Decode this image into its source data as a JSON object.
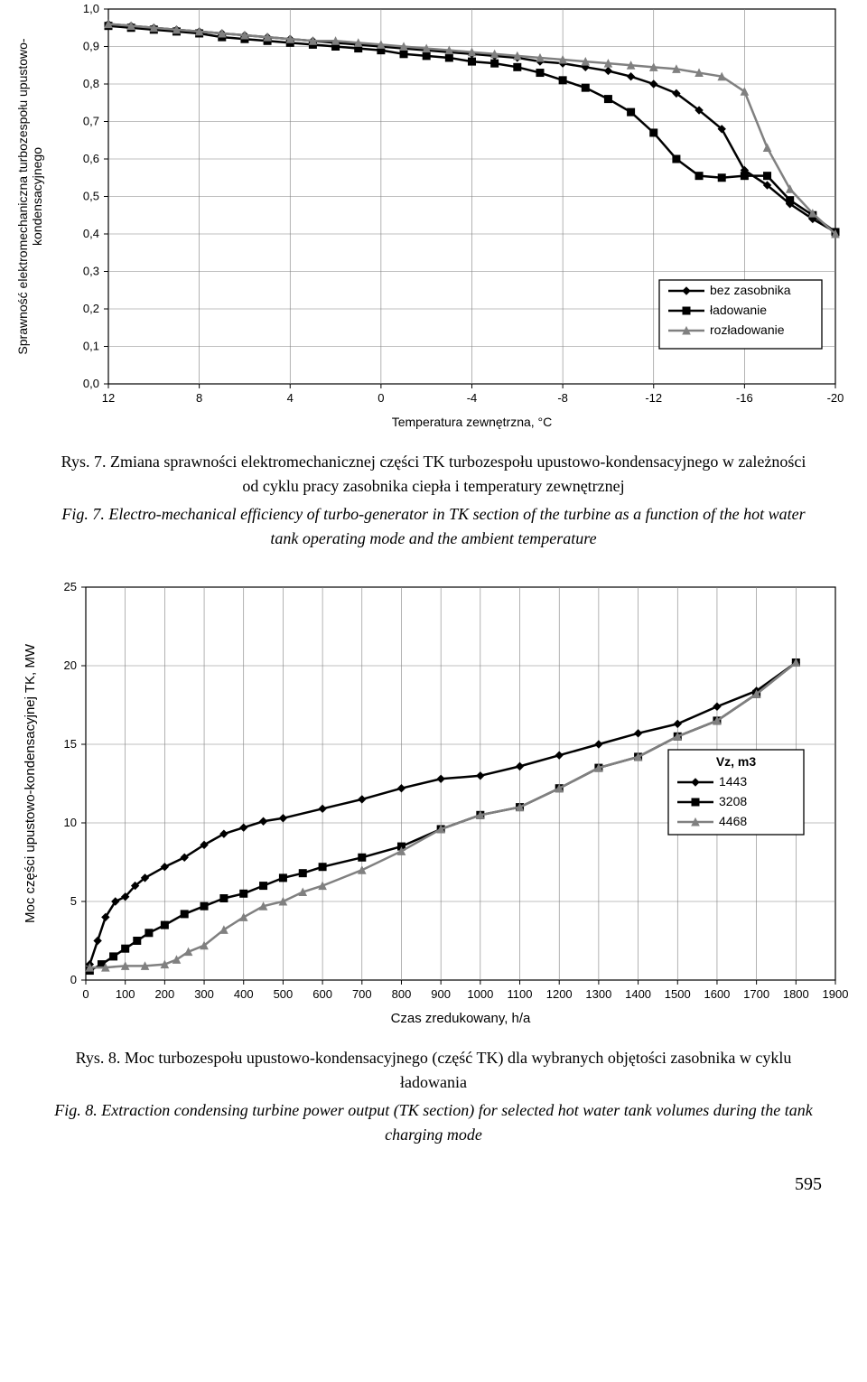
{
  "chart1": {
    "type": "line",
    "title_x": "Temperatura zewnętrzna, °C",
    "title_y": "Sprawność elektromechaniczna turbozespołu upustowo-kondensacyjnego",
    "xvals": [
      12,
      8,
      4,
      0,
      -4,
      -8,
      -12,
      -16,
      -20
    ],
    "yticks": [
      "0,0",
      "0,1",
      "0,2",
      "0,3",
      "0,4",
      "0,5",
      "0,6",
      "0,7",
      "0,8",
      "0,9",
      "1,0"
    ],
    "legend": {
      "title": "",
      "items": [
        "bez zasobnika",
        "ładowanie",
        "rozładowanie"
      ]
    },
    "series": [
      {
        "name": "bez zasobnika",
        "marker": "diamond",
        "color": "#000000",
        "x": [
          12,
          11,
          10,
          9,
          8,
          7,
          6,
          5,
          4,
          3,
          2,
          1,
          0,
          -1,
          -2,
          -3,
          -4,
          -5,
          -6,
          -7,
          -8,
          -9,
          -10,
          -11,
          -12,
          -13,
          -14,
          -15,
          -16,
          -17,
          -18,
          -19,
          -20
        ],
        "y": [
          0.96,
          0.955,
          0.95,
          0.945,
          0.94,
          0.935,
          0.93,
          0.925,
          0.92,
          0.915,
          0.91,
          0.905,
          0.9,
          0.895,
          0.89,
          0.885,
          0.88,
          0.875,
          0.87,
          0.86,
          0.855,
          0.845,
          0.835,
          0.82,
          0.8,
          0.775,
          0.73,
          0.68,
          0.57,
          0.53,
          0.48,
          0.44,
          0.405
        ]
      },
      {
        "name": "ładowanie",
        "marker": "square",
        "color": "#000000",
        "x": [
          12,
          11,
          10,
          9,
          8,
          7,
          6,
          5,
          4,
          3,
          2,
          1,
          0,
          -1,
          -2,
          -3,
          -4,
          -5,
          -6,
          -7,
          -8,
          -9,
          -10,
          -11,
          -12,
          -13,
          -14,
          -15,
          -16,
          -17,
          -18,
          -19,
          -20
        ],
        "y": [
          0.955,
          0.95,
          0.945,
          0.94,
          0.935,
          0.925,
          0.92,
          0.915,
          0.91,
          0.905,
          0.9,
          0.895,
          0.89,
          0.88,
          0.875,
          0.87,
          0.86,
          0.855,
          0.845,
          0.83,
          0.81,
          0.79,
          0.76,
          0.725,
          0.67,
          0.6,
          0.555,
          0.55,
          0.555,
          0.555,
          0.49,
          0.45,
          0.405
        ]
      },
      {
        "name": "rozładowanie",
        "marker": "triangle",
        "color": "#808080",
        "x": [
          12,
          11,
          10,
          9,
          8,
          7,
          6,
          5,
          4,
          3,
          2,
          1,
          0,
          -1,
          -2,
          -3,
          -4,
          -5,
          -6,
          -7,
          -8,
          -9,
          -10,
          -11,
          -12,
          -13,
          -14,
          -15,
          -16,
          -17,
          -18,
          -19,
          -20
        ],
        "y": [
          0.96,
          0.955,
          0.95,
          0.945,
          0.94,
          0.935,
          0.93,
          0.925,
          0.92,
          0.915,
          0.915,
          0.91,
          0.905,
          0.9,
          0.895,
          0.89,
          0.885,
          0.88,
          0.875,
          0.87,
          0.865,
          0.86,
          0.855,
          0.85,
          0.845,
          0.84,
          0.83,
          0.82,
          0.78,
          0.63,
          0.52,
          0.455,
          0.4
        ]
      }
    ],
    "background_color": "#ffffff",
    "grid_color": "#808080",
    "line_width": 2.5,
    "marker_size": 8,
    "xlim": [
      12,
      -20
    ],
    "ylim": [
      0,
      1.0
    ],
    "label_fontsize": 14,
    "tick_fontsize": 13
  },
  "caption1": {
    "pl": "Rys. 7. Zmiana sprawności elektromechanicznej części TK turbozespołu upustowo-kondensacyjnego w zależności od cyklu pracy zasobnika ciepła i temperatury zewnętrznej",
    "en": "Fig. 7. Electro-mechanical efficiency of turbo-generator in TK section of the turbine as a function of the hot water tank operating mode and the ambient temperature"
  },
  "chart2": {
    "type": "line",
    "title_x": "Czas zredukowany, h/a",
    "title_y": "Moc części upustowo-kondensacyjnej TK, MW",
    "xvals": [
      0,
      100,
      200,
      300,
      400,
      500,
      600,
      700,
      800,
      900,
      1000,
      1100,
      1200,
      1300,
      1400,
      1500,
      1600,
      1700,
      1800,
      1900
    ],
    "yticks": [
      "0",
      "5",
      "10",
      "15",
      "20",
      "25"
    ],
    "legend": {
      "title": "Vz, m3",
      "items": [
        "1443",
        "3208",
        "4468"
      ]
    },
    "series": [
      {
        "name": "1443",
        "marker": "diamond",
        "color": "#000000",
        "x": [
          10,
          30,
          50,
          75,
          100,
          125,
          150,
          200,
          250,
          300,
          350,
          400,
          450,
          500,
          600,
          700,
          800,
          900,
          1000,
          1100,
          1200,
          1300,
          1400,
          1500,
          1600,
          1700,
          1800
        ],
        "y": [
          1.0,
          2.5,
          4.0,
          5.0,
          5.3,
          6.0,
          6.5,
          7.2,
          7.8,
          8.6,
          9.3,
          9.7,
          10.1,
          10.3,
          10.9,
          11.5,
          12.2,
          12.8,
          13.0,
          13.6,
          14.3,
          15.0,
          15.7,
          16.3,
          17.4,
          18.4,
          20.2
        ]
      },
      {
        "name": "3208",
        "marker": "square",
        "color": "#000000",
        "x": [
          10,
          40,
          70,
          100,
          130,
          160,
          200,
          250,
          300,
          350,
          400,
          450,
          500,
          550,
          600,
          700,
          800,
          900,
          1000,
          1100,
          1200,
          1300,
          1400,
          1500,
          1600,
          1700,
          1800
        ],
        "y": [
          0.6,
          1.0,
          1.5,
          2.0,
          2.5,
          3.0,
          3.5,
          4.2,
          4.7,
          5.2,
          5.5,
          6.0,
          6.5,
          6.8,
          7.2,
          7.8,
          8.5,
          9.6,
          10.5,
          11.0,
          12.2,
          13.5,
          14.2,
          15.5,
          16.5,
          18.2,
          20.2
        ]
      },
      {
        "name": "4468",
        "marker": "triangle",
        "color": "#808080",
        "x": [
          10,
          50,
          100,
          150,
          200,
          230,
          260,
          300,
          350,
          400,
          450,
          500,
          550,
          600,
          700,
          800,
          900,
          1000,
          1100,
          1200,
          1300,
          1400,
          1500,
          1600,
          1700,
          1800
        ],
        "y": [
          0.8,
          0.8,
          0.9,
          0.9,
          1.0,
          1.3,
          1.8,
          2.2,
          3.2,
          4.0,
          4.7,
          5.0,
          5.6,
          6.0,
          7.0,
          8.2,
          9.6,
          10.5,
          11.0,
          12.2,
          13.5,
          14.2,
          15.5,
          16.5,
          18.2,
          20.2
        ]
      }
    ],
    "background_color": "#ffffff",
    "grid_color": "#808080",
    "line_width": 2.5,
    "marker_size": 8,
    "xlim": [
      0,
      1900
    ],
    "ylim": [
      0,
      25
    ],
    "label_fontsize": 15,
    "tick_fontsize": 13
  },
  "caption2": {
    "pl": "Rys. 8. Moc turbozespołu upustowo-kondensacyjnego (część TK) dla wybranych objętości zasobnika w cyklu ładowania",
    "en": "Fig. 8. Extraction condensing turbine power output (TK section) for selected hot water tank volumes during the tank charging mode"
  },
  "page_number": "595"
}
